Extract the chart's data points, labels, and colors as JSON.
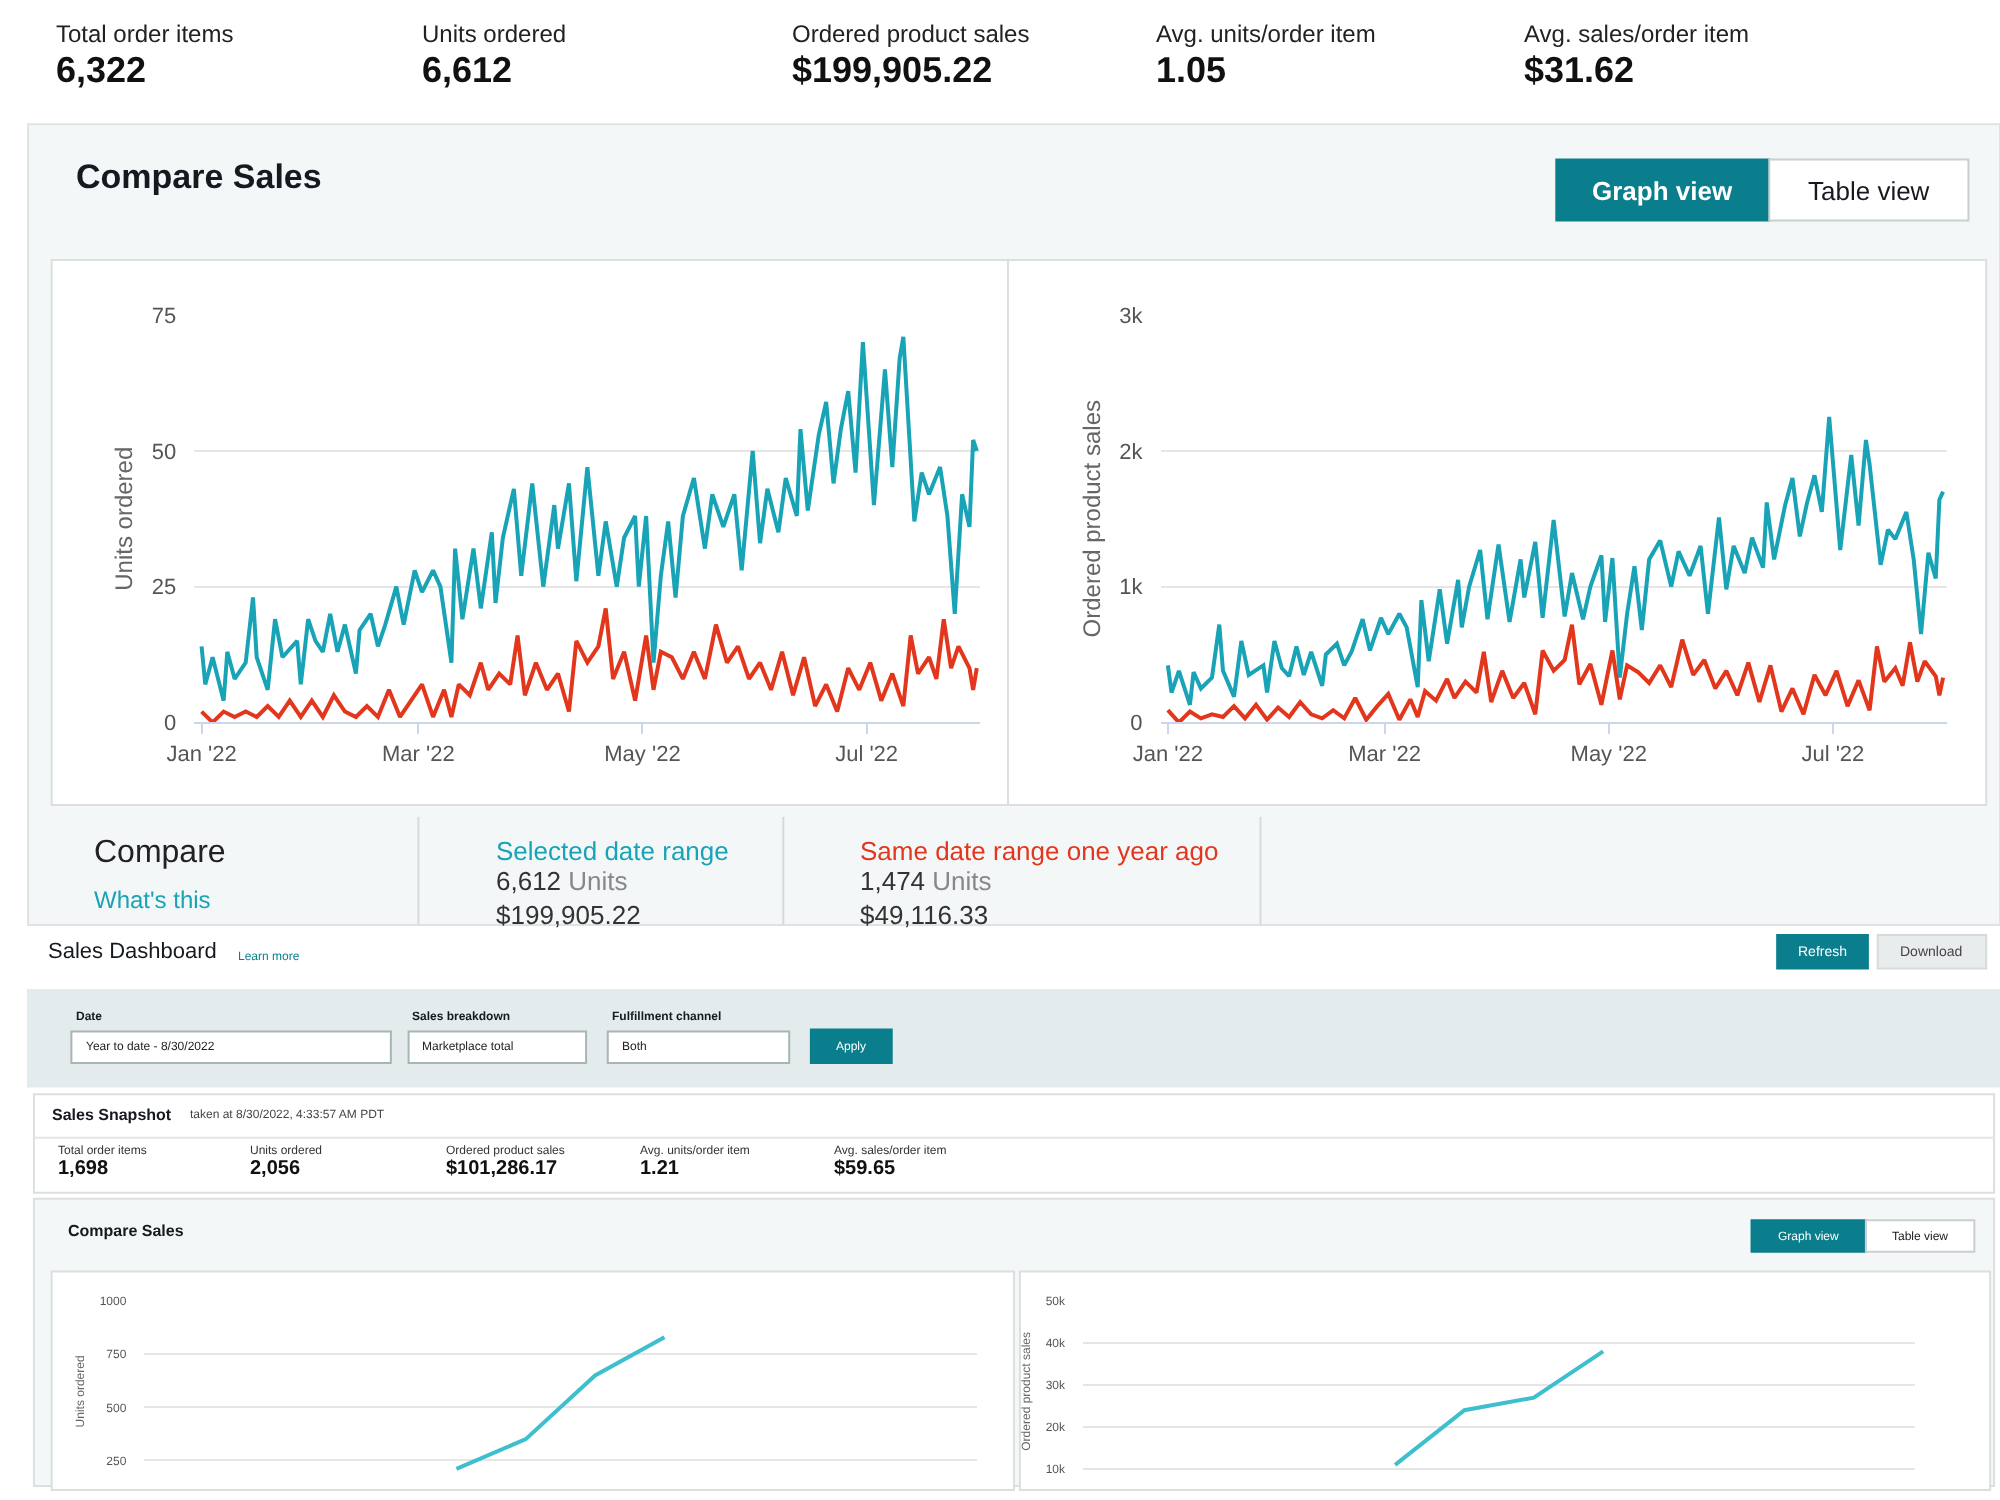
{
  "chart_data": [
    {
      "type": "other",
      "annotations": [
        "Total order items",
        "6,322",
        "Units ordered",
        "6,612",
        "Ordered product sales",
        "$199,905.22",
        "Avg. units/order item",
        "1.05",
        "Avg. sales/order item",
        "$31.62",
        "Compare Sales",
        "Graph view",
        "Table view"
      ]
    },
    {
      "type": "line",
      "ylabel": "Units ordered",
      "xlim": [
        "2021-12-30",
        "2022-08-01"
      ],
      "ylim": [
        0,
        75
      ],
      "yticks": [
        0,
        25,
        50,
        75
      ],
      "grid": "y",
      "xticks": [
        {
          "value": "2022-01-01",
          "label": "Jan '22"
        },
        {
          "value": "2022-03-01",
          "label": "Mar '22"
        },
        {
          "value": "2022-05-01",
          "label": "May '22"
        },
        {
          "value": "2022-07-01",
          "label": "Jul '22"
        }
      ],
      "series": [
        {
          "name": "Selected date range",
          "color": "#19a3b6",
          "x": [
            "2022-01-01",
            "2022-01-02",
            "2022-01-04",
            "2022-01-07",
            "2022-01-08",
            "2022-01-10",
            "2022-01-13",
            "2022-01-15",
            "2022-01-16",
            "2022-01-19",
            "2022-01-21",
            "2022-01-23",
            "2022-01-27",
            "2022-01-28",
            "2022-01-30",
            "2022-02-01",
            "2022-02-03",
            "2022-02-05",
            "2022-02-07",
            "2022-02-09",
            "2022-02-12",
            "2022-02-13",
            "2022-02-16",
            "2022-02-18",
            "2022-02-20",
            "2022-02-23",
            "2022-02-25",
            "2022-02-28",
            "2022-03-02",
            "2022-03-05",
            "2022-03-07",
            "2022-03-10",
            "2022-03-11",
            "2022-03-13",
            "2022-03-16",
            "2022-03-18",
            "2022-03-21",
            "2022-03-22",
            "2022-03-24",
            "2022-03-27",
            "2022-03-29",
            "2022-04-01",
            "2022-04-04",
            "2022-04-07",
            "2022-04-08",
            "2022-04-11",
            "2022-04-13",
            "2022-04-16",
            "2022-04-19",
            "2022-04-21",
            "2022-04-24",
            "2022-04-26",
            "2022-04-29",
            "2022-04-30",
            "2022-05-02",
            "2022-05-04",
            "2022-05-06",
            "2022-05-08",
            "2022-05-10",
            "2022-05-12",
            "2022-05-15",
            "2022-05-18",
            "2022-05-20",
            "2022-05-23",
            "2022-05-26",
            "2022-05-28",
            "2022-05-31",
            "2022-06-02",
            "2022-06-04",
            "2022-06-07",
            "2022-06-09",
            "2022-06-12",
            "2022-06-13",
            "2022-06-15",
            "2022-06-18",
            "2022-06-20",
            "2022-06-22",
            "2022-06-24",
            "2022-06-26",
            "2022-06-28",
            "2022-06-30",
            "2022-07-03",
            "2022-07-06",
            "2022-07-08",
            "2022-07-10",
            "2022-07-11",
            "2022-07-14",
            "2022-07-16",
            "2022-07-18",
            "2022-07-21",
            "2022-07-23",
            "2022-07-25",
            "2022-07-27",
            "2022-07-29",
            "2022-07-30",
            "2022-07-31"
          ],
          "values": [
            14,
            7,
            12,
            4,
            13,
            8,
            11,
            23,
            12,
            6,
            19,
            12,
            15,
            7,
            19,
            15,
            13,
            20,
            13,
            18,
            9,
            17,
            20,
            14,
            18,
            25,
            18,
            28,
            24,
            28,
            25,
            11,
            32,
            19,
            32,
            21,
            35,
            22,
            34,
            43,
            27,
            44,
            25,
            40,
            32,
            44,
            26,
            47,
            27,
            37,
            25,
            34,
            38,
            25,
            38,
            11,
            27,
            37,
            23,
            38,
            45,
            32,
            42,
            36,
            42,
            28,
            50,
            33,
            43,
            35,
            45,
            38,
            54,
            39,
            53,
            59,
            44,
            54,
            61,
            46,
            70,
            40,
            65,
            47,
            67,
            71,
            37,
            46,
            42,
            47,
            38,
            20,
            42,
            36,
            52,
            50
          ]
        },
        {
          "name": "Same date range one year ago",
          "color": "#e2371d",
          "x": [
            "2022-01-01",
            "2022-01-04",
            "2022-01-07",
            "2022-01-10",
            "2022-01-13",
            "2022-01-16",
            "2022-01-19",
            "2022-01-22",
            "2022-01-25",
            "2022-01-28",
            "2022-01-31",
            "2022-02-03",
            "2022-02-06",
            "2022-02-09",
            "2022-02-12",
            "2022-02-15",
            "2022-02-18",
            "2022-02-21",
            "2022-02-24",
            "2022-02-27",
            "2022-03-02",
            "2022-03-05",
            "2022-03-08",
            "2022-03-10",
            "2022-03-12",
            "2022-03-15",
            "2022-03-18",
            "2022-03-20",
            "2022-03-23",
            "2022-03-26",
            "2022-03-28",
            "2022-03-30",
            "2022-04-02",
            "2022-04-05",
            "2022-04-08",
            "2022-04-11",
            "2022-04-13",
            "2022-04-16",
            "2022-04-19",
            "2022-04-21",
            "2022-04-23",
            "2022-04-26",
            "2022-04-29",
            "2022-05-02",
            "2022-05-04",
            "2022-05-06",
            "2022-05-09",
            "2022-05-12",
            "2022-05-15",
            "2022-05-18",
            "2022-05-21",
            "2022-05-24",
            "2022-05-27",
            "2022-05-30",
            "2022-06-02",
            "2022-06-05",
            "2022-06-08",
            "2022-06-11",
            "2022-06-14",
            "2022-06-17",
            "2022-06-20",
            "2022-06-23",
            "2022-06-26",
            "2022-06-29",
            "2022-07-02",
            "2022-07-05",
            "2022-07-08",
            "2022-07-11",
            "2022-07-13",
            "2022-07-15",
            "2022-07-18",
            "2022-07-20",
            "2022-07-22",
            "2022-07-24",
            "2022-07-26",
            "2022-07-29",
            "2022-07-30",
            "2022-07-31"
          ],
          "values": [
            2,
            0,
            2,
            1,
            2,
            1,
            3,
            1,
            4,
            1,
            4,
            1,
            5,
            2,
            1,
            3,
            1,
            6,
            1,
            4,
            7,
            1,
            6,
            1,
            7,
            5,
            11,
            6,
            9,
            7,
            16,
            5,
            11,
            6,
            9,
            2,
            15,
            11,
            14,
            21,
            8,
            13,
            4,
            16,
            6,
            13,
            12,
            8,
            13,
            8,
            18,
            11,
            14,
            8,
            11,
            6,
            13,
            5,
            12,
            3,
            7,
            2,
            10,
            6,
            11,
            4,
            9,
            3,
            16,
            9,
            12,
            8,
            19,
            10,
            14,
            10,
            6,
            10
          ]
        }
      ]
    },
    {
      "type": "line",
      "ylabel": "Ordered product sales",
      "xlim": [
        "2021-12-30",
        "2022-08-01"
      ],
      "ylim": [
        0,
        3000
      ],
      "yticks": [
        0,
        {
          "value": 1000,
          "label": "1k"
        },
        {
          "value": 2000,
          "label": "2k"
        },
        {
          "value": 3000,
          "label": "3k"
        }
      ],
      "grid": "y",
      "xticks": [
        {
          "value": "2022-01-01",
          "label": "Jan '22"
        },
        {
          "value": "2022-03-01",
          "label": "Mar '22"
        },
        {
          "value": "2022-05-01",
          "label": "May '22"
        },
        {
          "value": "2022-07-01",
          "label": "Jul '22"
        }
      ],
      "series": [
        {
          "color": "#19a3b6",
          "x": [
            "2022-01-01",
            "2022-01-02",
            "2022-01-04",
            "2022-01-07",
            "2022-01-08",
            "2022-01-10",
            "2022-01-13",
            "2022-01-15",
            "2022-01-16",
            "2022-01-19",
            "2022-01-21",
            "2022-01-23",
            "2022-01-27",
            "2022-01-28",
            "2022-01-30",
            "2022-02-01",
            "2022-02-03",
            "2022-02-05",
            "2022-02-07",
            "2022-02-09",
            "2022-02-12",
            "2022-02-13",
            "2022-02-16",
            "2022-02-18",
            "2022-02-20",
            "2022-02-23",
            "2022-02-25",
            "2022-02-28",
            "2022-03-02",
            "2022-03-05",
            "2022-03-07",
            "2022-03-10",
            "2022-03-11",
            "2022-03-13",
            "2022-03-16",
            "2022-03-18",
            "2022-03-21",
            "2022-03-22",
            "2022-03-24",
            "2022-03-27",
            "2022-03-29",
            "2022-04-01",
            "2022-04-04",
            "2022-04-07",
            "2022-04-08",
            "2022-04-11",
            "2022-04-13",
            "2022-04-16",
            "2022-04-19",
            "2022-04-21",
            "2022-04-24",
            "2022-04-26",
            "2022-04-29",
            "2022-04-30",
            "2022-05-02",
            "2022-05-04",
            "2022-05-06",
            "2022-05-08",
            "2022-05-10",
            "2022-05-12",
            "2022-05-15",
            "2022-05-18",
            "2022-05-20",
            "2022-05-23",
            "2022-05-26",
            "2022-05-28",
            "2022-05-31",
            "2022-06-02",
            "2022-06-04",
            "2022-06-07",
            "2022-06-09",
            "2022-06-12",
            "2022-06-13",
            "2022-06-15",
            "2022-06-18",
            "2022-06-20",
            "2022-06-22",
            "2022-06-24",
            "2022-06-26",
            "2022-06-28",
            "2022-06-30",
            "2022-07-03",
            "2022-07-06",
            "2022-07-08",
            "2022-07-10",
            "2022-07-11",
            "2022-07-14",
            "2022-07-16",
            "2022-07-18",
            "2022-07-21",
            "2022-07-23",
            "2022-07-25",
            "2022-07-27",
            "2022-07-29",
            "2022-07-30",
            "2022-07-31"
          ],
          "values": [
            420,
            220,
            380,
            130,
            370,
            250,
            330,
            720,
            380,
            190,
            600,
            350,
            420,
            220,
            600,
            400,
            340,
            560,
            350,
            520,
            270,
            500,
            580,
            420,
            520,
            760,
            530,
            770,
            650,
            800,
            700,
            260,
            900,
            450,
            980,
            580,
            1050,
            700,
            1000,
            1270,
            760,
            1310,
            740,
            1200,
            920,
            1330,
            770,
            1490,
            780,
            1100,
            760,
            1000,
            1230,
            740,
            1210,
            330,
            800,
            1150,
            680,
            1200,
            1340,
            1000,
            1260,
            1080,
            1300,
            800,
            1510,
            980,
            1300,
            1100,
            1360,
            1140,
            1620,
            1200,
            1600,
            1800,
            1370,
            1620,
            1820,
            1550,
            2250,
            1270,
            1970,
            1450,
            2080,
            1900,
            1160,
            1420,
            1350,
            1550,
            1200,
            650,
            1250,
            1060,
            1640,
            1700
          ]
        },
        {
          "color": "#e2371d",
          "x": [
            "2022-01-01",
            "2022-01-04",
            "2022-01-07",
            "2022-01-10",
            "2022-01-13",
            "2022-01-16",
            "2022-01-19",
            "2022-01-22",
            "2022-01-25",
            "2022-01-28",
            "2022-01-31",
            "2022-02-03",
            "2022-02-06",
            "2022-02-09",
            "2022-02-12",
            "2022-02-15",
            "2022-02-18",
            "2022-02-21",
            "2022-02-24",
            "2022-02-27",
            "2022-03-02",
            "2022-03-05",
            "2022-03-08",
            "2022-03-10",
            "2022-03-12",
            "2022-03-15",
            "2022-03-18",
            "2022-03-20",
            "2022-03-23",
            "2022-03-26",
            "2022-03-28",
            "2022-03-30",
            "2022-04-02",
            "2022-04-05",
            "2022-04-08",
            "2022-04-11",
            "2022-04-13",
            "2022-04-16",
            "2022-04-19",
            "2022-04-21",
            "2022-04-23",
            "2022-04-26",
            "2022-04-29",
            "2022-05-02",
            "2022-05-04",
            "2022-05-06",
            "2022-05-09",
            "2022-05-12",
            "2022-05-15",
            "2022-05-18",
            "2022-05-21",
            "2022-05-24",
            "2022-05-27",
            "2022-05-30",
            "2022-06-02",
            "2022-06-05",
            "2022-06-08",
            "2022-06-11",
            "2022-06-14",
            "2022-06-17",
            "2022-06-20",
            "2022-06-23",
            "2022-06-26",
            "2022-06-29",
            "2022-07-02",
            "2022-07-05",
            "2022-07-08",
            "2022-07-11",
            "2022-07-13",
            "2022-07-15",
            "2022-07-18",
            "2022-07-20",
            "2022-07-22",
            "2022-07-24",
            "2022-07-26",
            "2022-07-29",
            "2022-07-30",
            "2022-07-31"
          ],
          "values": [
            90,
            0,
            80,
            30,
            60,
            40,
            120,
            30,
            130,
            20,
            110,
            40,
            150,
            60,
            30,
            90,
            30,
            180,
            20,
            120,
            210,
            20,
            170,
            40,
            230,
            160,
            320,
            180,
            300,
            220,
            520,
            150,
            380,
            180,
            290,
            60,
            530,
            380,
            460,
            720,
            280,
            430,
            130,
            530,
            170,
            420,
            370,
            290,
            420,
            260,
            610,
            350,
            460,
            250,
            380,
            200,
            440,
            150,
            420,
            80,
            250,
            60,
            350,
            200,
            380,
            120,
            310,
            90,
            560,
            300,
            400,
            270,
            590,
            300,
            450,
            340,
            200,
            330
          ]
        }
      ]
    },
    {
      "type": "other",
      "annotations": [
        "Compare",
        "What's this",
        "6,612",
        "Units",
        "$199,905.22",
        "1,474",
        "Units",
        "$49,116.33"
      ]
    },
    {
      "type": "other",
      "annotations": [
        "Sales Dashboard",
        "Learn more",
        "Refresh",
        "Download",
        "Date",
        "Year to date - 8/30/2022",
        "Sales breakdown",
        "Marketplace total",
        "Fulfillment channel",
        "Both",
        "Apply",
        "Sales Snapshot",
        "taken at 8/30/2022, 4:33:57 AM PDT",
        "Total order items",
        "1,698",
        "Units ordered",
        "2,056",
        "Ordered product sales",
        "$101,286.17",
        "Avg. units/order item",
        "1.21",
        "Avg. sales/order item",
        "$59.65",
        "Compare Sales",
        "Graph view",
        "Table view"
      ]
    },
    {
      "type": "line",
      "ylabel": "Units ordered",
      "categories": [
        null,
        null,
        null,
        null,
        null,
        null,
        null,
        null,
        null,
        null,
        null,
        null
      ],
      "tick_labels": "y",
      "ylim": [
        150,
        1000
      ],
      "yticks": [
        250,
        500,
        750,
        1000
      ],
      "grid": "y",
      "series": [
        {
          "color": "#3dbfcf",
          "values": [
            null,
            null,
            null,
            null,
            210,
            350,
            650,
            830,
            null,
            null,
            null,
            null
          ]
        }
      ]
    },
    {
      "type": "line",
      "ylabel": "Ordered product sales",
      "categories": [
        null,
        null,
        null,
        null,
        null,
        null,
        null,
        null,
        null,
        null,
        null,
        null
      ],
      "tick_labels": "y",
      "ylim": [
        7000,
        50000
      ],
      "yticks": [
        {
          "value": 10000,
          "label": "10k"
        },
        {
          "value": 20000,
          "label": "20k"
        },
        {
          "value": 30000,
          "label": "30k"
        },
        {
          "value": 40000,
          "label": "40k"
        },
        {
          "value": 50000,
          "label": "50k"
        }
      ],
      "grid": "y",
      "series": [
        {
          "color": "#3dbfcf",
          "values": [
            null,
            null,
            null,
            null,
            11000,
            24000,
            27000,
            38000,
            null,
            null,
            null,
            null
          ]
        }
      ]
    }
  ]
}
